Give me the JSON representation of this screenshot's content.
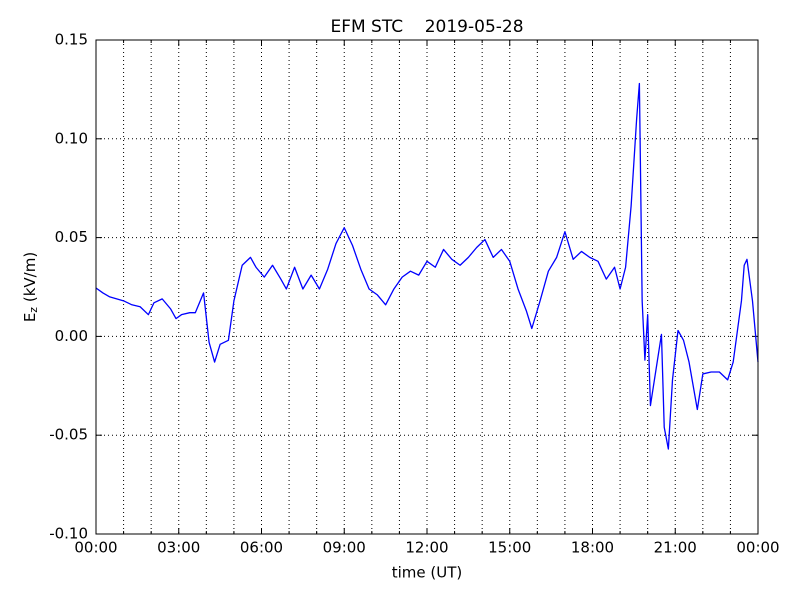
{
  "chart_data": {
    "type": "line",
    "title": "EFM STC    2019-05-28",
    "xlabel": "time (UT)",
    "ylabel": {
      "base": "E",
      "subscript": "z",
      "unit": " (kV/m)"
    },
    "xlim": [
      0,
      24
    ],
    "xticks": [
      {
        "value": 0,
        "label": "00:00"
      },
      {
        "value": 3,
        "label": "03:00"
      },
      {
        "value": 6,
        "label": "06:00"
      },
      {
        "value": 9,
        "label": "09:00"
      },
      {
        "value": 12,
        "label": "12:00"
      },
      {
        "value": 15,
        "label": "15:00"
      },
      {
        "value": 18,
        "label": "18:00"
      },
      {
        "value": 21,
        "label": "21:00"
      },
      {
        "value": 24,
        "label": "00:00"
      }
    ],
    "xminorticks": [
      1,
      2,
      4,
      5,
      7,
      8,
      10,
      11,
      13,
      14,
      16,
      17,
      19,
      20,
      22,
      23
    ],
    "ylim": [
      -0.1,
      0.15
    ],
    "yticks": [
      {
        "value": -0.1,
        "label": "-0.10"
      },
      -0.05,
      {
        "value": 0,
        "label": "0.00"
      },
      0.05,
      {
        "value": 0.1,
        "label": "0.10"
      },
      0.15
    ],
    "grid": true,
    "series": [
      {
        "name": "Ez",
        "color": "#0000ff",
        "x": [
          0,
          0.25,
          0.5,
          1.0,
          1.3,
          1.6,
          1.9,
          2.1,
          2.4,
          2.7,
          2.9,
          3.1,
          3.4,
          3.6,
          3.9,
          4.1,
          4.3,
          4.5,
          4.8,
          5.0,
          5.3,
          5.6,
          5.8,
          6.1,
          6.4,
          6.7,
          6.9,
          7.2,
          7.5,
          7.8,
          8.1,
          8.4,
          8.7,
          9.0,
          9.3,
          9.6,
          9.9,
          10.2,
          10.5,
          10.8,
          11.1,
          11.4,
          11.7,
          12.0,
          12.3,
          12.6,
          12.9,
          13.2,
          13.5,
          13.8,
          14.1,
          14.4,
          14.7,
          15.0,
          15.3,
          15.6,
          15.8,
          16.1,
          16.4,
          16.7,
          17.0,
          17.3,
          17.6,
          17.9,
          18.2,
          18.5,
          18.8,
          19.0,
          19.2,
          19.4,
          19.6,
          19.7,
          19.8,
          19.9,
          20.0,
          20.1,
          20.3,
          20.5,
          20.6,
          20.75,
          20.9,
          21.1,
          21.3,
          21.5,
          21.8,
          22.0,
          22.3,
          22.6,
          22.9,
          23.1,
          23.4,
          23.5,
          23.6,
          23.8,
          24.0
        ],
        "values": [
          0.0245,
          0.022,
          0.02,
          0.018,
          0.016,
          0.015,
          0.011,
          0.017,
          0.019,
          0.014,
          0.009,
          0.011,
          0.012,
          0.012,
          0.022,
          -0.003,
          -0.013,
          -0.004,
          -0.002,
          0.018,
          0.036,
          0.04,
          0.035,
          0.03,
          0.036,
          0.029,
          0.024,
          0.035,
          0.024,
          0.031,
          0.024,
          0.034,
          0.047,
          0.055,
          0.046,
          0.034,
          0.024,
          0.021,
          0.016,
          0.024,
          0.03,
          0.033,
          0.031,
          0.038,
          0.035,
          0.044,
          0.039,
          0.036,
          0.04,
          0.045,
          0.049,
          0.04,
          0.044,
          0.038,
          0.024,
          0.013,
          0.004,
          0.018,
          0.033,
          0.04,
          0.053,
          0.039,
          0.043,
          0.04,
          0.038,
          0.029,
          0.035,
          0.024,
          0.035,
          0.066,
          0.11,
          0.128,
          0.018,
          -0.012,
          0.011,
          -0.035,
          -0.017,
          0.001,
          -0.046,
          -0.057,
          -0.022,
          0.003,
          -0.002,
          -0.013,
          -0.037,
          -0.019,
          -0.018,
          -0.018,
          -0.022,
          -0.013,
          0.018,
          0.036,
          0.039,
          0.018,
          -0.013
        ]
      }
    ]
  }
}
